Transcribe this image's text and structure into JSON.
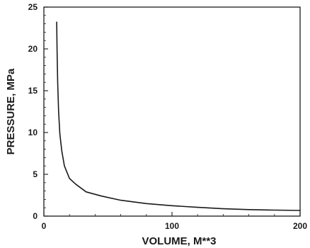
{
  "chart_data": {
    "type": "line",
    "title": "",
    "xlabel": "VOLUME, M**3",
    "ylabel": "PRESSURE, MPa",
    "xlim": [
      0,
      200
    ],
    "ylim": [
      0,
      25
    ],
    "x_ticks": [
      0,
      100,
      200
    ],
    "y_ticks": [
      0,
      5,
      10,
      15,
      20,
      25
    ],
    "x_tick_labels": [
      "0",
      "100",
      "200"
    ],
    "y_tick_labels": [
      "0",
      "5",
      "10",
      "15",
      "20",
      "25"
    ],
    "grid": false,
    "series": [
      {
        "x": [
          10,
          10.3,
          10.8,
          11.5,
          12.5,
          14,
          16,
          20,
          25,
          33,
          45,
          60,
          80,
          100,
          120,
          140,
          160,
          180,
          200
        ],
        "y": [
          23.2,
          20,
          16,
          12.5,
          9.8,
          7.8,
          6.0,
          4.5,
          3.8,
          2.9,
          2.4,
          1.9,
          1.5,
          1.25,
          1.05,
          0.88,
          0.78,
          0.72,
          0.68
        ]
      }
    ]
  }
}
